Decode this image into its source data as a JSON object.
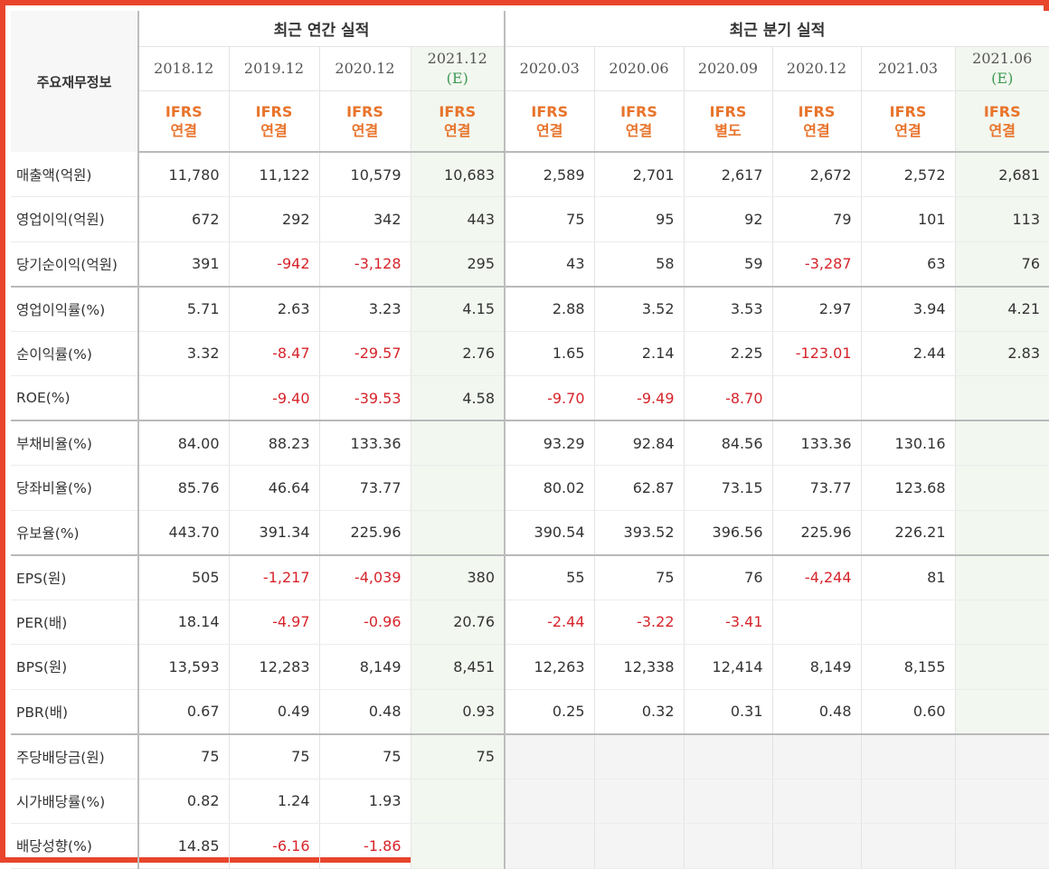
{
  "header": {
    "corner_label": "주요재무정보",
    "annual_group": "최근 연간 실적",
    "quarter_group": "최근 분기 실적",
    "periods": [
      {
        "date": "2018.12",
        "est": "",
        "acc1": "IFRS",
        "acc2": "연결"
      },
      {
        "date": "2019.12",
        "est": "",
        "acc1": "IFRS",
        "acc2": "연결"
      },
      {
        "date": "2020.12",
        "est": "",
        "acc1": "IFRS",
        "acc2": "연결"
      },
      {
        "date": "2021.12",
        "est": "(E)",
        "acc1": "IFRS",
        "acc2": "연결"
      },
      {
        "date": "2020.03",
        "est": "",
        "acc1": "IFRS",
        "acc2": "연결"
      },
      {
        "date": "2020.06",
        "est": "",
        "acc1": "IFRS",
        "acc2": "연결"
      },
      {
        "date": "2020.09",
        "est": "",
        "acc1": "IFRS",
        "acc2": "별도"
      },
      {
        "date": "2020.12",
        "est": "",
        "acc1": "IFRS",
        "acc2": "연결"
      },
      {
        "date": "2021.03",
        "est": "",
        "acc1": "IFRS",
        "acc2": "연결"
      },
      {
        "date": "2021.06",
        "est": "(E)",
        "acc1": "IFRS",
        "acc2": "연결"
      }
    ]
  },
  "rows": [
    {
      "label": "매출액(억원)",
      "values": [
        "11,780",
        "11,122",
        "10,579",
        "10,683",
        "2,589",
        "2,701",
        "2,617",
        "2,672",
        "2,572",
        "2,681"
      ]
    },
    {
      "label": "영업이익(억원)",
      "values": [
        "672",
        "292",
        "342",
        "443",
        "75",
        "95",
        "92",
        "79",
        "101",
        "113"
      ]
    },
    {
      "label": "당기순이익(억원)",
      "values": [
        "391",
        "-942",
        "-3,128",
        "295",
        "43",
        "58",
        "59",
        "-3,287",
        "63",
        "76"
      ]
    },
    {
      "label": "영업이익률(%)",
      "values": [
        "5.71",
        "2.63",
        "3.23",
        "4.15",
        "2.88",
        "3.52",
        "3.53",
        "2.97",
        "3.94",
        "4.21"
      ]
    },
    {
      "label": "순이익률(%)",
      "values": [
        "3.32",
        "-8.47",
        "-29.57",
        "2.76",
        "1.65",
        "2.14",
        "2.25",
        "-123.01",
        "2.44",
        "2.83"
      ]
    },
    {
      "label": "ROE(%)",
      "values": [
        "",
        "-9.40",
        "-39.53",
        "4.58",
        "-9.70",
        "-9.49",
        "-8.70",
        "",
        "",
        ""
      ]
    },
    {
      "label": "부채비율(%)",
      "values": [
        "84.00",
        "88.23",
        "133.36",
        "",
        "93.29",
        "92.84",
        "84.56",
        "133.36",
        "130.16",
        ""
      ]
    },
    {
      "label": "당좌비율(%)",
      "values": [
        "85.76",
        "46.64",
        "73.77",
        "",
        "80.02",
        "62.87",
        "73.15",
        "73.77",
        "123.68",
        ""
      ]
    },
    {
      "label": "유보율(%)",
      "values": [
        "443.70",
        "391.34",
        "225.96",
        "",
        "390.54",
        "393.52",
        "396.56",
        "225.96",
        "226.21",
        ""
      ]
    },
    {
      "label": "EPS(원)",
      "values": [
        "505",
        "-1,217",
        "-4,039",
        "380",
        "55",
        "75",
        "76",
        "-4,244",
        "81",
        ""
      ]
    },
    {
      "label": "PER(배)",
      "values": [
        "18.14",
        "-4.97",
        "-0.96",
        "20.76",
        "-2.44",
        "-3.22",
        "-3.41",
        "",
        "",
        ""
      ]
    },
    {
      "label": "BPS(원)",
      "values": [
        "13,593",
        "12,283",
        "8,149",
        "8,451",
        "12,263",
        "12,338",
        "12,414",
        "8,149",
        "8,155",
        ""
      ]
    },
    {
      "label": "PBR(배)",
      "values": [
        "0.67",
        "0.49",
        "0.48",
        "0.93",
        "0.25",
        "0.32",
        "0.31",
        "0.48",
        "0.60",
        ""
      ]
    },
    {
      "label": "주당배당금(원)",
      "values": [
        "75",
        "75",
        "75",
        "75",
        "",
        "",
        "",
        "",
        "",
        ""
      ]
    },
    {
      "label": "시가배당률(%)",
      "values": [
        "0.82",
        "1.24",
        "1.93",
        "",
        "",
        "",
        "",
        "",
        "",
        ""
      ]
    },
    {
      "label": "배당성향(%)",
      "values": [
        "14.85",
        "-6.16",
        "-1.86",
        "",
        "",
        "",
        "",
        "",
        "",
        ""
      ]
    }
  ],
  "style": {
    "negative_color": "#d6242b",
    "estimate_color": "#3f9b55",
    "accounting_color": "#e8742c",
    "frame_color": "#e8452c"
  }
}
